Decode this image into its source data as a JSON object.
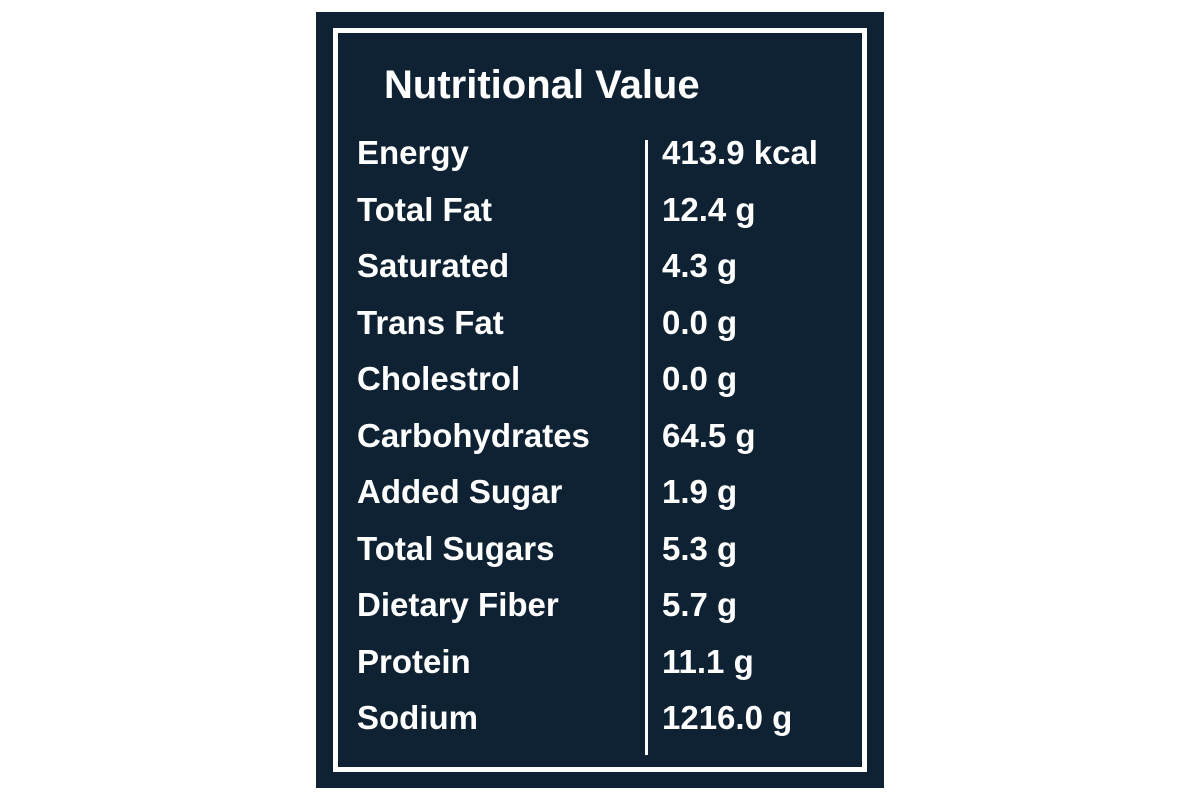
{
  "title": "Nutritional Value",
  "table": {
    "rows": [
      [
        "Energy",
        "413.9 kcal"
      ],
      [
        "Total Fat",
        "12.4 g"
      ],
      [
        "Saturated",
        "4.3 g"
      ],
      [
        "Trans Fat",
        "0.0 g"
      ],
      [
        "Cholestrol",
        "0.0 g"
      ],
      [
        "Carbohydrates",
        "64.5 g"
      ],
      [
        "Added Sugar",
        "1.9 g"
      ],
      [
        "Total Sugars",
        "5.3 g"
      ],
      [
        "Dietary Fiber",
        "5.7 g"
      ],
      [
        "Protein",
        "11.1 g"
      ],
      [
        "Sodium",
        "1216.0 g"
      ]
    ]
  }
}
